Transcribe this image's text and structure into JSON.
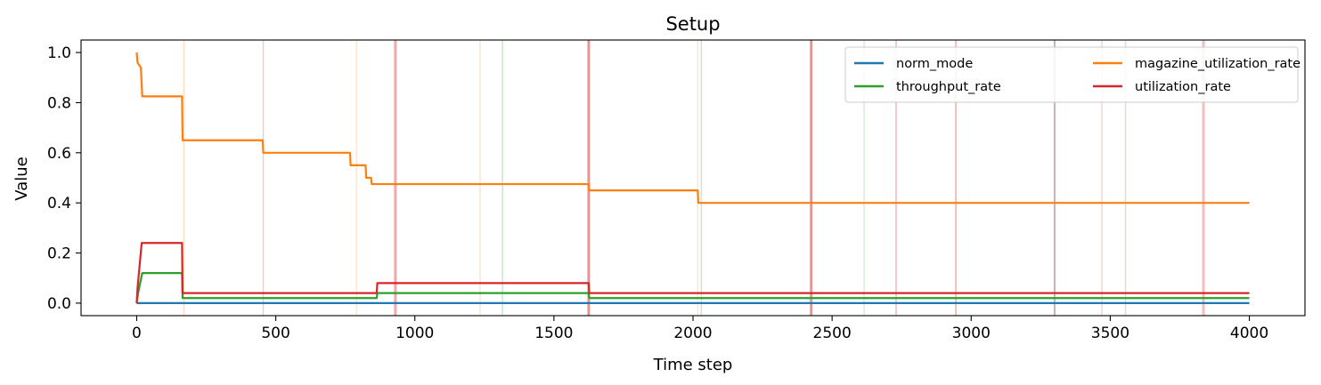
{
  "chart_data": {
    "type": "line",
    "title": "Setup",
    "xlabel": "Time step",
    "ylabel": "Value",
    "xlim": [
      -200,
      4200
    ],
    "ylim": [
      -0.05,
      1.05
    ],
    "xticks": [
      0,
      500,
      1000,
      1500,
      2000,
      2500,
      3000,
      3500,
      4000
    ],
    "xtick_labels": [
      "0",
      "500",
      "1000",
      "1500",
      "2000",
      "2500",
      "3000",
      "3500",
      "4000"
    ],
    "yticks": [
      0.0,
      0.2,
      0.4,
      0.6,
      0.8,
      1.0
    ],
    "ytick_labels": [
      "0.0",
      "0.2",
      "0.4",
      "0.6",
      "0.8",
      "1.0"
    ],
    "grid": false,
    "legend": {
      "placement": "top-right",
      "columns": 2
    },
    "series": [
      {
        "name": "norm_mode",
        "color": "#1f77b4",
        "points": [
          [
            0,
            0.0
          ],
          [
            4000,
            0.0
          ]
        ]
      },
      {
        "name": "magazine_utilization_rate",
        "color": "#ff7f0e",
        "points": [
          [
            0,
            1.0
          ],
          [
            3,
            0.96
          ],
          [
            15,
            0.94
          ],
          [
            20,
            0.825
          ],
          [
            163,
            0.825
          ],
          [
            165,
            0.65
          ],
          [
            453,
            0.65
          ],
          [
            455,
            0.6
          ],
          [
            767,
            0.6
          ],
          [
            769,
            0.55
          ],
          [
            823,
            0.55
          ],
          [
            825,
            0.5
          ],
          [
            843,
            0.5
          ],
          [
            845,
            0.475
          ],
          [
            1625,
            0.475
          ],
          [
            1627,
            0.45
          ],
          [
            2017,
            0.45
          ],
          [
            2019,
            0.4
          ],
          [
            4000,
            0.4
          ]
        ]
      },
      {
        "name": "throughput_rate",
        "color": "#2ca02c",
        "points": [
          [
            0,
            0.0
          ],
          [
            5,
            0.04
          ],
          [
            20,
            0.12
          ],
          [
            163,
            0.12
          ],
          [
            165,
            0.02
          ],
          [
            863,
            0.02
          ],
          [
            865,
            0.04
          ],
          [
            1625,
            0.04
          ],
          [
            1627,
            0.02
          ],
          [
            4000,
            0.02
          ]
        ]
      },
      {
        "name": "utilization_rate",
        "color": "#d62728",
        "points": [
          [
            0,
            0.0
          ],
          [
            3,
            0.06
          ],
          [
            18,
            0.24
          ],
          [
            163,
            0.24
          ],
          [
            165,
            0.04
          ],
          [
            863,
            0.04
          ],
          [
            865,
            0.08
          ],
          [
            1625,
            0.08
          ],
          [
            1627,
            0.04
          ],
          [
            4000,
            0.04
          ]
        ]
      }
    ],
    "vertical_markers": [
      {
        "x": 170,
        "color": "#ff7f0e",
        "opacity": 0.25,
        "width": 1.5
      },
      {
        "x": 455,
        "color": "#d62728",
        "opacity": 0.25,
        "width": 1.5
      },
      {
        "x": 790,
        "color": "#ff7f0e",
        "opacity": 0.2,
        "width": 1.5
      },
      {
        "x": 930,
        "color": "#d62728",
        "opacity": 0.4,
        "width": 3
      },
      {
        "x": 1235,
        "color": "#ff7f0e",
        "opacity": 0.2,
        "width": 1.5
      },
      {
        "x": 1315,
        "color": "#2ca02c",
        "opacity": 0.25,
        "width": 1.5
      },
      {
        "x": 1625,
        "color": "#d62728",
        "opacity": 0.5,
        "width": 3
      },
      {
        "x": 2017,
        "color": "#ff7f0e",
        "opacity": 0.2,
        "width": 1.5
      },
      {
        "x": 2030,
        "color": "#2ca02c",
        "opacity": 0.25,
        "width": 1.5
      },
      {
        "x": 2425,
        "color": "#d62728",
        "opacity": 0.5,
        "width": 3
      },
      {
        "x": 2615,
        "color": "#2ca02c",
        "opacity": 0.2,
        "width": 1.5
      },
      {
        "x": 2730,
        "color": "#d62728",
        "opacity": 0.25,
        "width": 2
      },
      {
        "x": 2945,
        "color": "#d62728",
        "opacity": 0.3,
        "width": 2
      },
      {
        "x": 3300,
        "color": "#8c564b",
        "opacity": 0.45,
        "width": 2
      },
      {
        "x": 3470,
        "color": "#d62728",
        "opacity": 0.2,
        "width": 1.5
      },
      {
        "x": 3555,
        "color": "#2ca02c",
        "opacity": 0.25,
        "width": 1.5
      },
      {
        "x": 3835,
        "color": "#d62728",
        "opacity": 0.3,
        "width": 3
      }
    ]
  }
}
